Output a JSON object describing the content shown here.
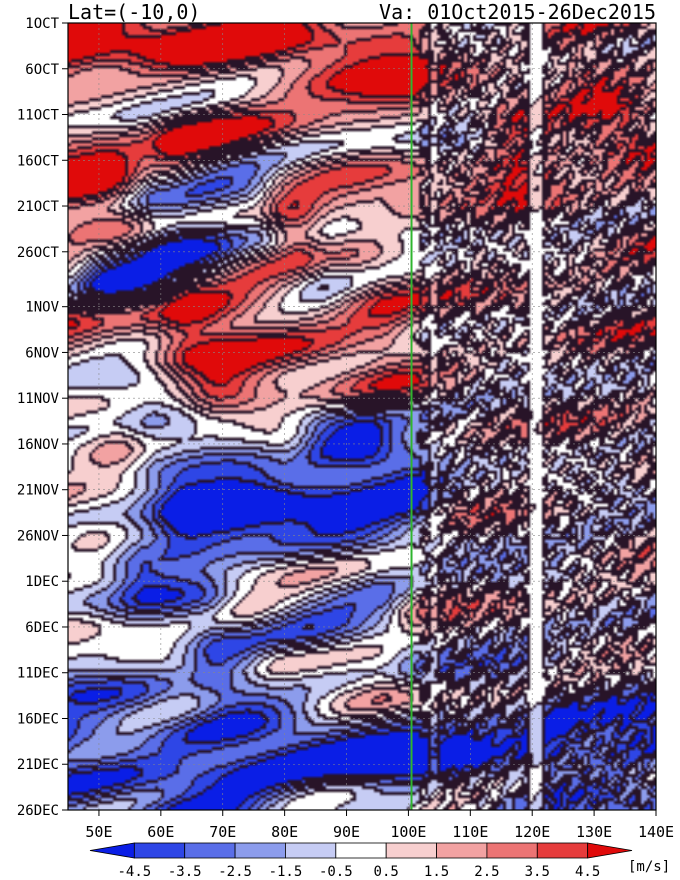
{
  "chart_data": {
    "type": "heatmap",
    "title_left": "Lat=(-10,0)",
    "title_right": "Va: 01Oct2015-26Dec2015",
    "x_axis": {
      "range": [
        45,
        140
      ],
      "ticks": [
        50,
        60,
        70,
        80,
        90,
        100,
        110,
        120,
        130,
        140
      ],
      "tick_labels": [
        "50E",
        "60E",
        "70E",
        "80E",
        "90E",
        "100E",
        "110E",
        "120E",
        "130E",
        "140E"
      ]
    },
    "y_axis": {
      "range_days": [
        0,
        86
      ],
      "ticks_day_index": [
        0,
        5,
        10,
        15,
        20,
        25,
        31,
        36,
        41,
        46,
        51,
        56,
        61,
        66,
        71,
        76,
        81,
        86
      ],
      "tick_labels": [
        "1OCT",
        "6OCT",
        "11OCT",
        "16OCT",
        "21OCT",
        "26OCT",
        "1NOV",
        "6NOV",
        "11NOV",
        "16NOV",
        "21NOV",
        "26NOV",
        "1DEC",
        "6DEC",
        "11DEC",
        "16DEC",
        "21DEC",
        "26DEC"
      ],
      "direction": "downward"
    },
    "marker_line": {
      "longitude": 100.5,
      "color": "#2fb52f"
    },
    "colorbar": {
      "labels": [
        "-4.5",
        "-3.5",
        "-2.5",
        "-1.5",
        "-0.5",
        "0.5",
        "1.5",
        "2.5",
        "3.5",
        "4.5"
      ],
      "unit": "[m/s]",
      "colors": [
        "#0a1ee6",
        "#2e46e6",
        "#5a6ee8",
        "#8c9cec",
        "#c6ccf4",
        "#ffffff",
        "#f7cfcf",
        "#f2a2a2",
        "#ec7474",
        "#e63c3c",
        "#e00a0a"
      ]
    },
    "features": [
      {
        "kind": "neg",
        "start": [
          52,
          28
        ],
        "end": [
          75,
          22
        ],
        "amp": 4.5
      },
      {
        "kind": "neg",
        "start": [
          58,
          16
        ],
        "end": [
          62,
          24
        ],
        "amp": 4.0
      },
      {
        "kind": "pos",
        "start": [
          65,
          28
        ],
        "end": [
          80,
          23
        ],
        "amp": 4.5
      },
      {
        "kind": "neg",
        "start": [
          70,
          26
        ],
        "end": [
          85,
          27
        ],
        "amp": 3.0
      },
      {
        "kind": "neg",
        "start": [
          60,
          46
        ],
        "end": [
          92,
          45
        ],
        "amp": 3.5
      },
      {
        "kind": "neg",
        "start": [
          65,
          53
        ],
        "end": [
          100,
          50
        ],
        "amp": 3.5
      },
      {
        "kind": "neg",
        "start": [
          58,
          60
        ],
        "end": [
          100,
          54
        ],
        "amp": 3.5
      },
      {
        "kind": "neg",
        "start": [
          70,
          70
        ],
        "end": [
          95,
          65
        ],
        "amp": 3.5
      },
      {
        "kind": "neg",
        "start": [
          45,
          80
        ],
        "end": [
          120,
          80
        ],
        "amp": 3.0
      },
      {
        "kind": "neg",
        "start": [
          125,
          78
        ],
        "end": [
          140,
          78
        ],
        "amp": 3.5
      },
      {
        "kind": "pos",
        "start": [
          45,
          2
        ],
        "end": [
          100,
          4
        ],
        "amp": 3.0
      },
      {
        "kind": "pos",
        "start": [
          45,
          17
        ],
        "end": [
          60,
          18
        ],
        "amp": 4.0
      },
      {
        "kind": "pos",
        "start": [
          70,
          41
        ],
        "end": [
          80,
          45
        ],
        "amp": 3.5
      },
      {
        "kind": "pos",
        "start": [
          65,
          35
        ],
        "end": [
          95,
          33
        ],
        "amp": 2.5
      },
      {
        "kind": "pos",
        "start": [
          75,
          64
        ],
        "end": [
          100,
          58
        ],
        "amp": 2.5
      },
      {
        "kind": "pos",
        "start": [
          80,
          70
        ],
        "end": [
          95,
          70
        ],
        "amp": 2.5
      },
      {
        "kind": "pos",
        "start": [
          128,
          4
        ],
        "end": [
          138,
          16
        ],
        "amp": 2.5
      },
      {
        "kind": "pos",
        "start": [
          118,
          12
        ],
        "end": [
          118,
          16
        ],
        "amp": 3.0
      }
    ]
  }
}
